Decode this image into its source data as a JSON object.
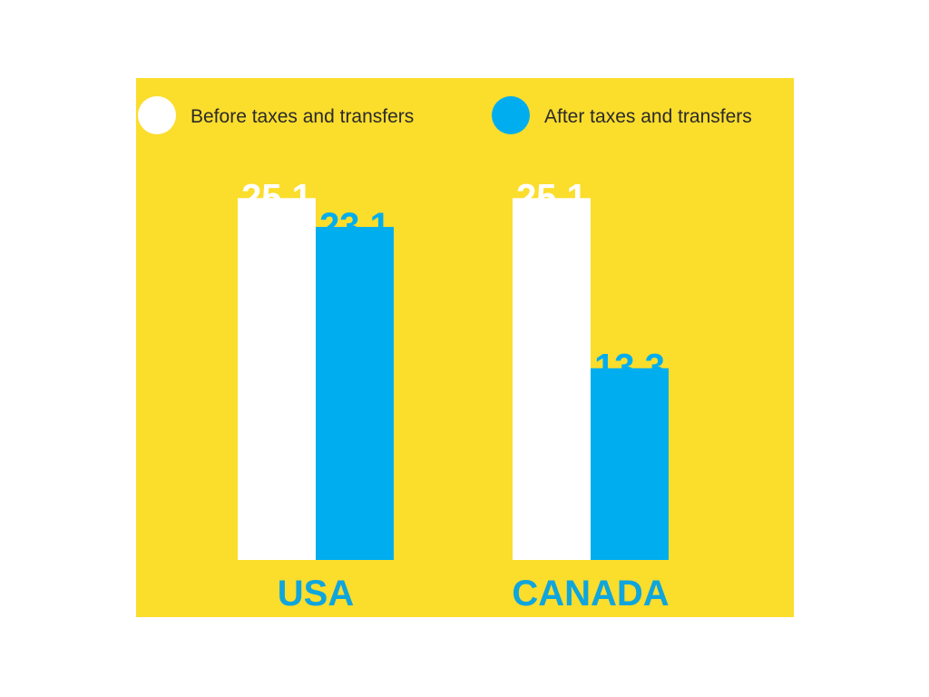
{
  "colors": {
    "background": "#FBDD2C",
    "before": "#FFFFFF",
    "after": "#00AEEF",
    "category_text": "#0FA5DD"
  },
  "chart_data": {
    "type": "bar",
    "categories": [
      "USA",
      "CANADA"
    ],
    "series": [
      {
        "name": "Before taxes and transfers",
        "values": [
          25.1,
          25.1
        ]
      },
      {
        "name": "After taxes and transfers",
        "values": [
          23.1,
          13.3
        ]
      }
    ],
    "value_labels": [
      [
        "25.1",
        "25.1"
      ],
      [
        "23.1",
        "13.3"
      ]
    ],
    "ylim": [
      0,
      26
    ],
    "grid": false,
    "legend_position": "top",
    "title": "",
    "xlabel": "",
    "ylabel": ""
  }
}
